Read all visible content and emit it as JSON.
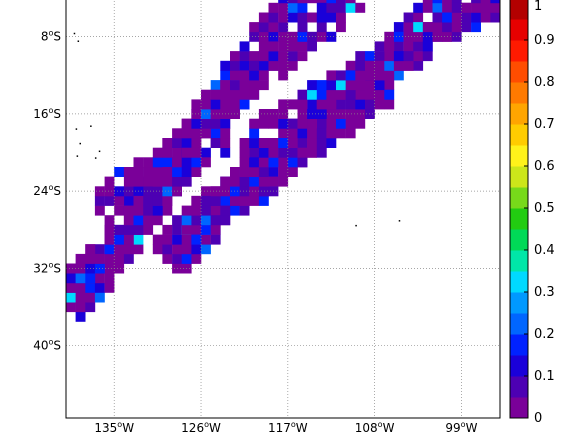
{
  "map": {
    "lat_labels": [
      {
        "text": "8",
        "sup": "o",
        "suffix": "S",
        "lat": -8
      },
      {
        "text": "16",
        "sup": "o",
        "suffix": "S",
        "lat": -16
      },
      {
        "text": "24",
        "sup": "o",
        "suffix": "S",
        "lat": -24
      },
      {
        "text": "32",
        "sup": "o",
        "suffix": "S",
        "lat": -32
      },
      {
        "text": "40",
        "sup": "o",
        "suffix": "S",
        "lat": -40
      }
    ],
    "lon_labels": [
      {
        "text": "135",
        "sup": "o",
        "suffix": "W",
        "lon": -135
      },
      {
        "text": "126",
        "sup": "o",
        "suffix": "W",
        "lon": -126
      },
      {
        "text": "117",
        "sup": "o",
        "suffix": "W",
        "lon": -117
      },
      {
        "text": "108",
        "sup": "o",
        "suffix": "W",
        "lon": -108
      },
      {
        "text": "99",
        "sup": "o",
        "suffix": "W",
        "lon": -99
      }
    ],
    "lon_range": [
      -140,
      -95
    ],
    "lat_range": [
      -47.5,
      -4
    ],
    "grid": "dotted",
    "swaths": [
      {
        "lon0": -140,
        "lat0": -36.5,
        "lon1": -114,
        "lat1": -2,
        "width": 2.2
      },
      {
        "lon0": -137,
        "lat0": -26,
        "lon1": -110,
        "lat1": -4,
        "width": 1.6
      },
      {
        "lon0": -130,
        "lat0": -31,
        "lon1": -99,
        "lat1": -4,
        "width": 2.4
      },
      {
        "lon0": -128,
        "lat0": -28.5,
        "lon1": -107,
        "lat1": -13,
        "width": 2.0
      },
      {
        "lon0": -140,
        "lat0": -34,
        "lon1": -126,
        "lat1": -20,
        "width": 1.6
      },
      {
        "lon0": -124,
        "lat0": -20,
        "lon1": -95,
        "lat1": -4,
        "width": 1.6
      }
    ]
  },
  "colorbar": {
    "ticks": [
      "0",
      "0.1",
      "0.2",
      "0.3",
      "0.4",
      "0.5",
      "0.6",
      "0.7",
      "0.8",
      "0.9",
      "1"
    ],
    "colors": [
      "#7a0099",
      "#4d00b3",
      "#1a00d9",
      "#0022ff",
      "#0066ff",
      "#0099ff",
      "#00d9ff",
      "#00e6a8",
      "#00d957",
      "#22cc11",
      "#77d91a",
      "#cce61a",
      "#fff21a",
      "#ffcc00",
      "#ffa500",
      "#ff7a00",
      "#ff4d00",
      "#ff1a00",
      "#e60000",
      "#b30000"
    ]
  }
}
